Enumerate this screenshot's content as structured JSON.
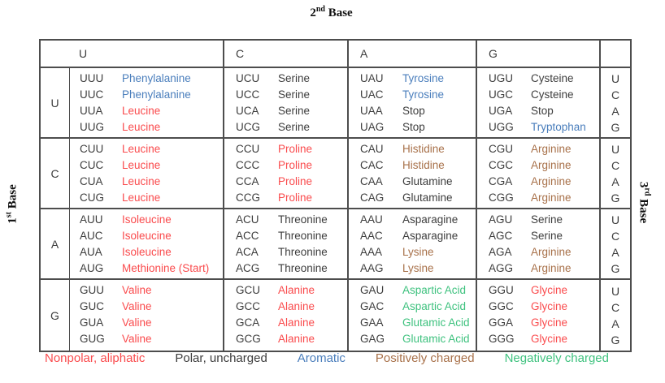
{
  "axes": {
    "second": {
      "num": "2",
      "sup": "nd",
      "word": "Base"
    },
    "first": {
      "num": "1",
      "sup": "st",
      "word": "Base"
    },
    "third": {
      "num": "3",
      "sup": "rd",
      "word": "Base"
    }
  },
  "colors": {
    "codon": "#3d3d3d",
    "nonpolar": "#fa4b4d",
    "polar": "#3d3d3d",
    "aromatic": "#4a7ebc",
    "positive": "#a8714a",
    "negative": "#3fc27f",
    "stop": "#3d3d3d",
    "border": "#4d4d4d"
  },
  "second_bases": [
    "U",
    "C",
    "A",
    "G"
  ],
  "third_bases": [
    "U",
    "C",
    "A",
    "G"
  ],
  "rows": [
    {
      "first_base": "U",
      "cells": [
        [
          {
            "codon": "UUU",
            "amino": "Phenylalanine",
            "cat": "aromatic"
          },
          {
            "codon": "UUC",
            "amino": "Phenylalanine",
            "cat": "aromatic"
          },
          {
            "codon": "UUA",
            "amino": "Leucine",
            "cat": "nonpolar"
          },
          {
            "codon": "UUG",
            "amino": "Leucine",
            "cat": "nonpolar"
          }
        ],
        [
          {
            "codon": "UCU",
            "amino": "Serine",
            "cat": "polar"
          },
          {
            "codon": "UCC",
            "amino": "Serine",
            "cat": "polar"
          },
          {
            "codon": "UCA",
            "amino": "Serine",
            "cat": "polar"
          },
          {
            "codon": "UCG",
            "amino": "Serine",
            "cat": "polar"
          }
        ],
        [
          {
            "codon": "UAU",
            "amino": "Tyrosine",
            "cat": "aromatic"
          },
          {
            "codon": "UAC",
            "amino": "Tyrosine",
            "cat": "aromatic"
          },
          {
            "codon": "UAA",
            "amino": "Stop",
            "cat": "stop"
          },
          {
            "codon": "UAG",
            "amino": "Stop",
            "cat": "stop"
          }
        ],
        [
          {
            "codon": "UGU",
            "amino": "Cysteine",
            "cat": "polar"
          },
          {
            "codon": "UGC",
            "amino": "Cysteine",
            "cat": "polar"
          },
          {
            "codon": "UGA",
            "amino": "Stop",
            "cat": "stop"
          },
          {
            "codon": "UGG",
            "amino": "Tryptophan",
            "cat": "aromatic"
          }
        ]
      ]
    },
    {
      "first_base": "C",
      "cells": [
        [
          {
            "codon": "CUU",
            "amino": "Leucine",
            "cat": "nonpolar"
          },
          {
            "codon": "CUC",
            "amino": "Leucine",
            "cat": "nonpolar"
          },
          {
            "codon": "CUA",
            "amino": "Leucine",
            "cat": "nonpolar"
          },
          {
            "codon": "CUG",
            "amino": "Leucine",
            "cat": "nonpolar"
          }
        ],
        [
          {
            "codon": "CCU",
            "amino": "Proline",
            "cat": "nonpolar"
          },
          {
            "codon": "CCC",
            "amino": "Proline",
            "cat": "nonpolar"
          },
          {
            "codon": "CCA",
            "amino": "Proline",
            "cat": "nonpolar"
          },
          {
            "codon": "CCG",
            "amino": "Proline",
            "cat": "nonpolar"
          }
        ],
        [
          {
            "codon": "CAU",
            "amino": "Histidine",
            "cat": "positive"
          },
          {
            "codon": "CAC",
            "amino": "Histidine",
            "cat": "positive"
          },
          {
            "codon": "CAA",
            "amino": "Glutamine",
            "cat": "polar"
          },
          {
            "codon": "CAG",
            "amino": "Glutamine",
            "cat": "polar"
          }
        ],
        [
          {
            "codon": "CGU",
            "amino": "Arginine",
            "cat": "positive"
          },
          {
            "codon": "CGC",
            "amino": "Arginine",
            "cat": "positive"
          },
          {
            "codon": "CGA",
            "amino": "Arginine",
            "cat": "positive"
          },
          {
            "codon": "CGG",
            "amino": "Arginine",
            "cat": "positive"
          }
        ]
      ]
    },
    {
      "first_base": "A",
      "cells": [
        [
          {
            "codon": "AUU",
            "amino": "Isoleucine",
            "cat": "nonpolar"
          },
          {
            "codon": "AUC",
            "amino": "Isoleucine",
            "cat": "nonpolar"
          },
          {
            "codon": "AUA",
            "amino": "Isoleucine",
            "cat": "nonpolar"
          },
          {
            "codon": "AUG",
            "amino": "Methionine (Start)",
            "cat": "nonpolar"
          }
        ],
        [
          {
            "codon": "ACU",
            "amino": "Threonine",
            "cat": "polar"
          },
          {
            "codon": "ACC",
            "amino": "Threonine",
            "cat": "polar"
          },
          {
            "codon": "ACA",
            "amino": "Threonine",
            "cat": "polar"
          },
          {
            "codon": "ACG",
            "amino": "Threonine",
            "cat": "polar"
          }
        ],
        [
          {
            "codon": "AAU",
            "amino": "Asparagine",
            "cat": "polar"
          },
          {
            "codon": "AAC",
            "amino": "Asparagine",
            "cat": "polar"
          },
          {
            "codon": "AAA",
            "amino": "Lysine",
            "cat": "positive"
          },
          {
            "codon": "AAG",
            "amino": "Lysine",
            "cat": "positive"
          }
        ],
        [
          {
            "codon": "AGU",
            "amino": "Serine",
            "cat": "polar"
          },
          {
            "codon": "AGC",
            "amino": "Serine",
            "cat": "polar"
          },
          {
            "codon": "AGA",
            "amino": "Arginine",
            "cat": "positive"
          },
          {
            "codon": "AGG",
            "amino": "Arginine",
            "cat": "positive"
          }
        ]
      ]
    },
    {
      "first_base": "G",
      "cells": [
        [
          {
            "codon": "GUU",
            "amino": "Valine",
            "cat": "nonpolar"
          },
          {
            "codon": "GUC",
            "amino": "Valine",
            "cat": "nonpolar"
          },
          {
            "codon": "GUA",
            "amino": "Valine",
            "cat": "nonpolar"
          },
          {
            "codon": "GUG",
            "amino": "Valine",
            "cat": "nonpolar"
          }
        ],
        [
          {
            "codon": "GCU",
            "amino": "Alanine",
            "cat": "nonpolar"
          },
          {
            "codon": "GCC",
            "amino": "Alanine",
            "cat": "nonpolar"
          },
          {
            "codon": "GCA",
            "amino": "Alanine",
            "cat": "nonpolar"
          },
          {
            "codon": "GCG",
            "amino": "Alanine",
            "cat": "nonpolar"
          }
        ],
        [
          {
            "codon": "GAU",
            "amino": "Aspartic Acid",
            "cat": "negative"
          },
          {
            "codon": "GAC",
            "amino": "Aspartic Acid",
            "cat": "negative"
          },
          {
            "codon": "GAA",
            "amino": "Glutamic Acid",
            "cat": "negative"
          },
          {
            "codon": "GAG",
            "amino": "Glutamic Acid",
            "cat": "negative"
          }
        ],
        [
          {
            "codon": "GGU",
            "amino": "Glycine",
            "cat": "nonpolar"
          },
          {
            "codon": "GGC",
            "amino": "Glycine",
            "cat": "nonpolar"
          },
          {
            "codon": "GGA",
            "amino": "Glycine",
            "cat": "nonpolar"
          },
          {
            "codon": "GGG",
            "amino": "Glycine",
            "cat": "nonpolar"
          }
        ]
      ]
    }
  ],
  "legend": [
    {
      "label": "Nonpolar, aliphatic",
      "cat": "nonpolar"
    },
    {
      "label": "Polar, uncharged",
      "cat": "polar"
    },
    {
      "label": "Aromatic",
      "cat": "aromatic"
    },
    {
      "label": "Positively charged",
      "cat": "positive"
    },
    {
      "label": "Negatively charged",
      "cat": "negative"
    }
  ]
}
